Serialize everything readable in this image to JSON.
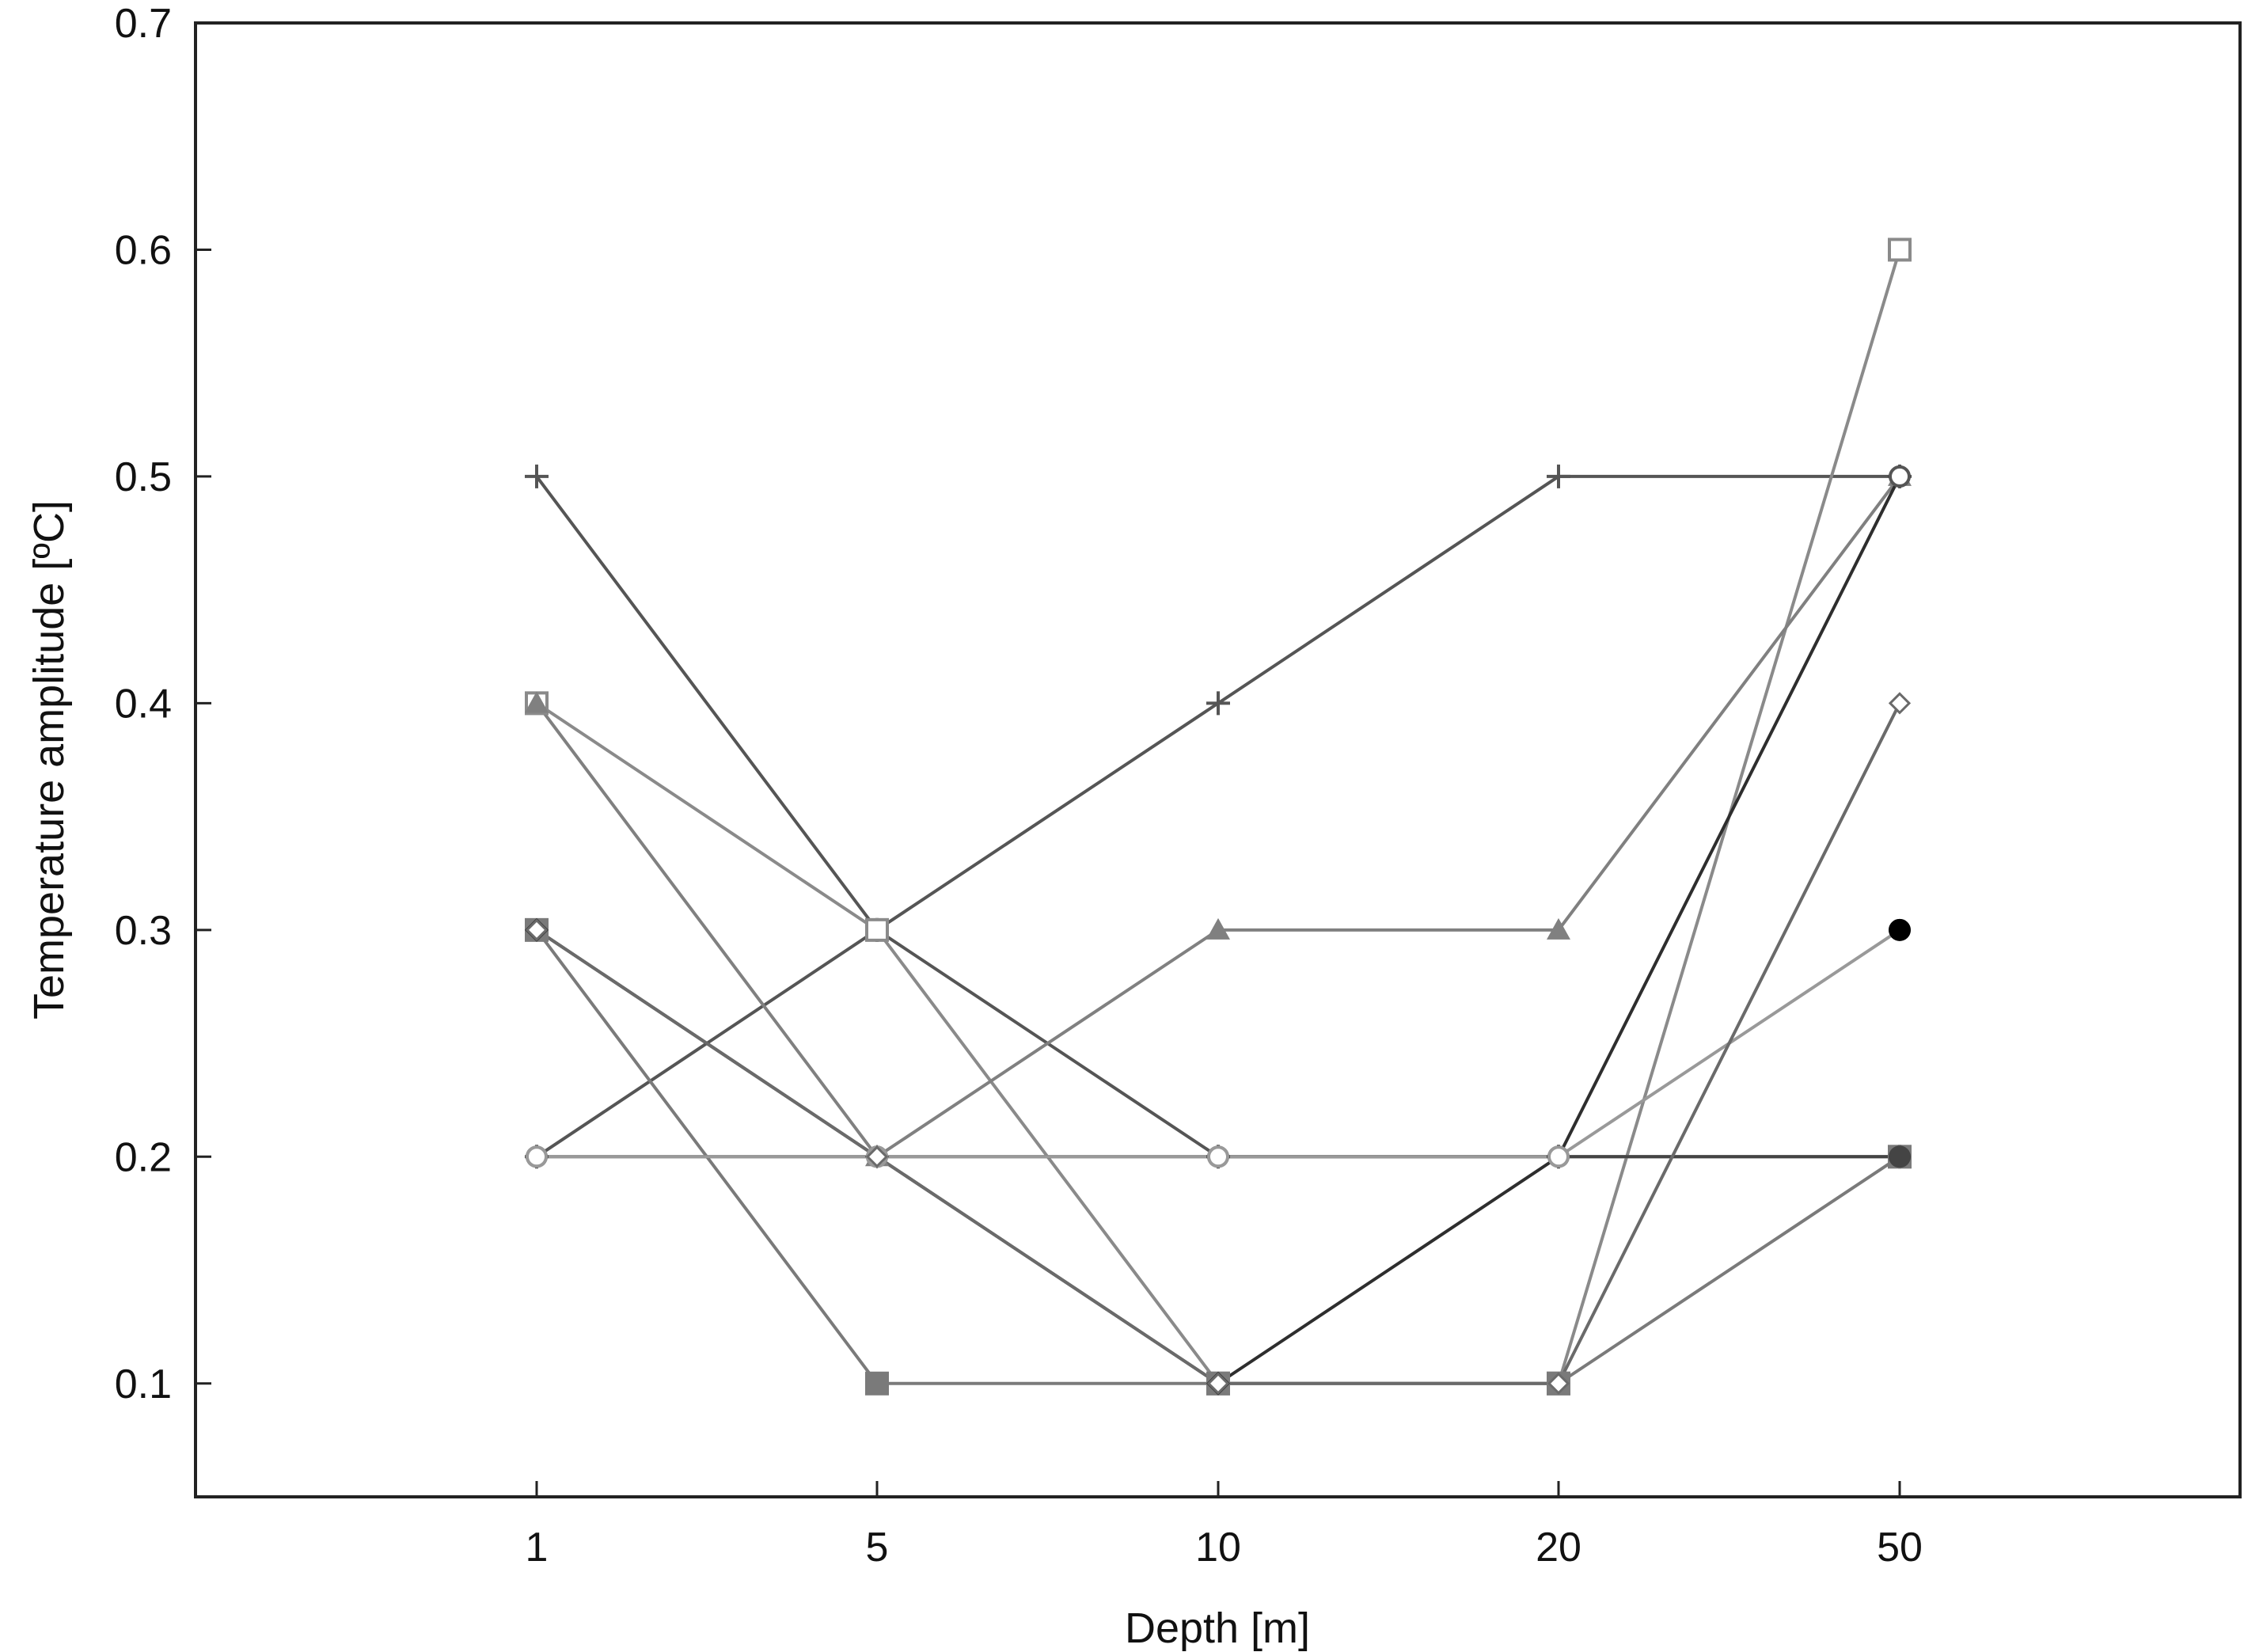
{
  "chart_data": {
    "type": "line",
    "title": "",
    "xlabel": "Depth [m]",
    "ylabel": "Temperature amplitude [ºC]",
    "categories": [
      "1",
      "5",
      "10",
      "20",
      "50"
    ],
    "ylim": [
      0.05,
      0.7
    ],
    "yticks": [
      "0.1",
      "0.2",
      "0.3",
      "0.4",
      "0.5",
      "0.6",
      "0.7"
    ],
    "grid": false,
    "legend": "none",
    "series": [
      {
        "marker": "plus",
        "color": "#555555",
        "values": [
          0.5,
          0.3,
          0.2,
          0.2,
          0.2
        ]
      },
      {
        "marker": "plus",
        "color": "#555555",
        "values": [
          0.2,
          0.3,
          0.4,
          0.5,
          0.5
        ]
      },
      {
        "marker": "square-open",
        "color": "#8a8a8a",
        "values": [
          0.4,
          0.3,
          0.1,
          0.1,
          0.6
        ]
      },
      {
        "marker": "triangle",
        "color": "#808080",
        "values": [
          0.4,
          0.2,
          0.3,
          0.3,
          0.5
        ]
      },
      {
        "marker": "square-filled",
        "color": "#7a7a7a",
        "values": [
          0.3,
          0.1,
          0.1,
          0.1,
          0.2
        ]
      },
      {
        "marker": "diamond-filled",
        "color": "#2e2e2e",
        "values": [
          0.3,
          0.2,
          0.1,
          0.2,
          0.5
        ]
      },
      {
        "marker": "circle-filled",
        "color": "#444444",
        "values": [
          0.2,
          0.2,
          0.2,
          0.2,
          0.2
        ]
      },
      {
        "marker": "circle-open",
        "color": "#999999",
        "values": [
          0.2,
          0.2,
          0.2,
          0.2,
          0.3
        ]
      },
      {
        "marker": "diamond-open",
        "color": "#6a6a6a",
        "values": [
          0.3,
          0.2,
          0.1,
          0.1,
          0.4
        ]
      }
    ],
    "extra_points": [
      {
        "marker": "circle-filled",
        "color": "#000000",
        "x": "50",
        "y": 0.3
      },
      {
        "marker": "circle-open",
        "color": "#555555",
        "x": "50",
        "y": 0.5
      }
    ]
  }
}
